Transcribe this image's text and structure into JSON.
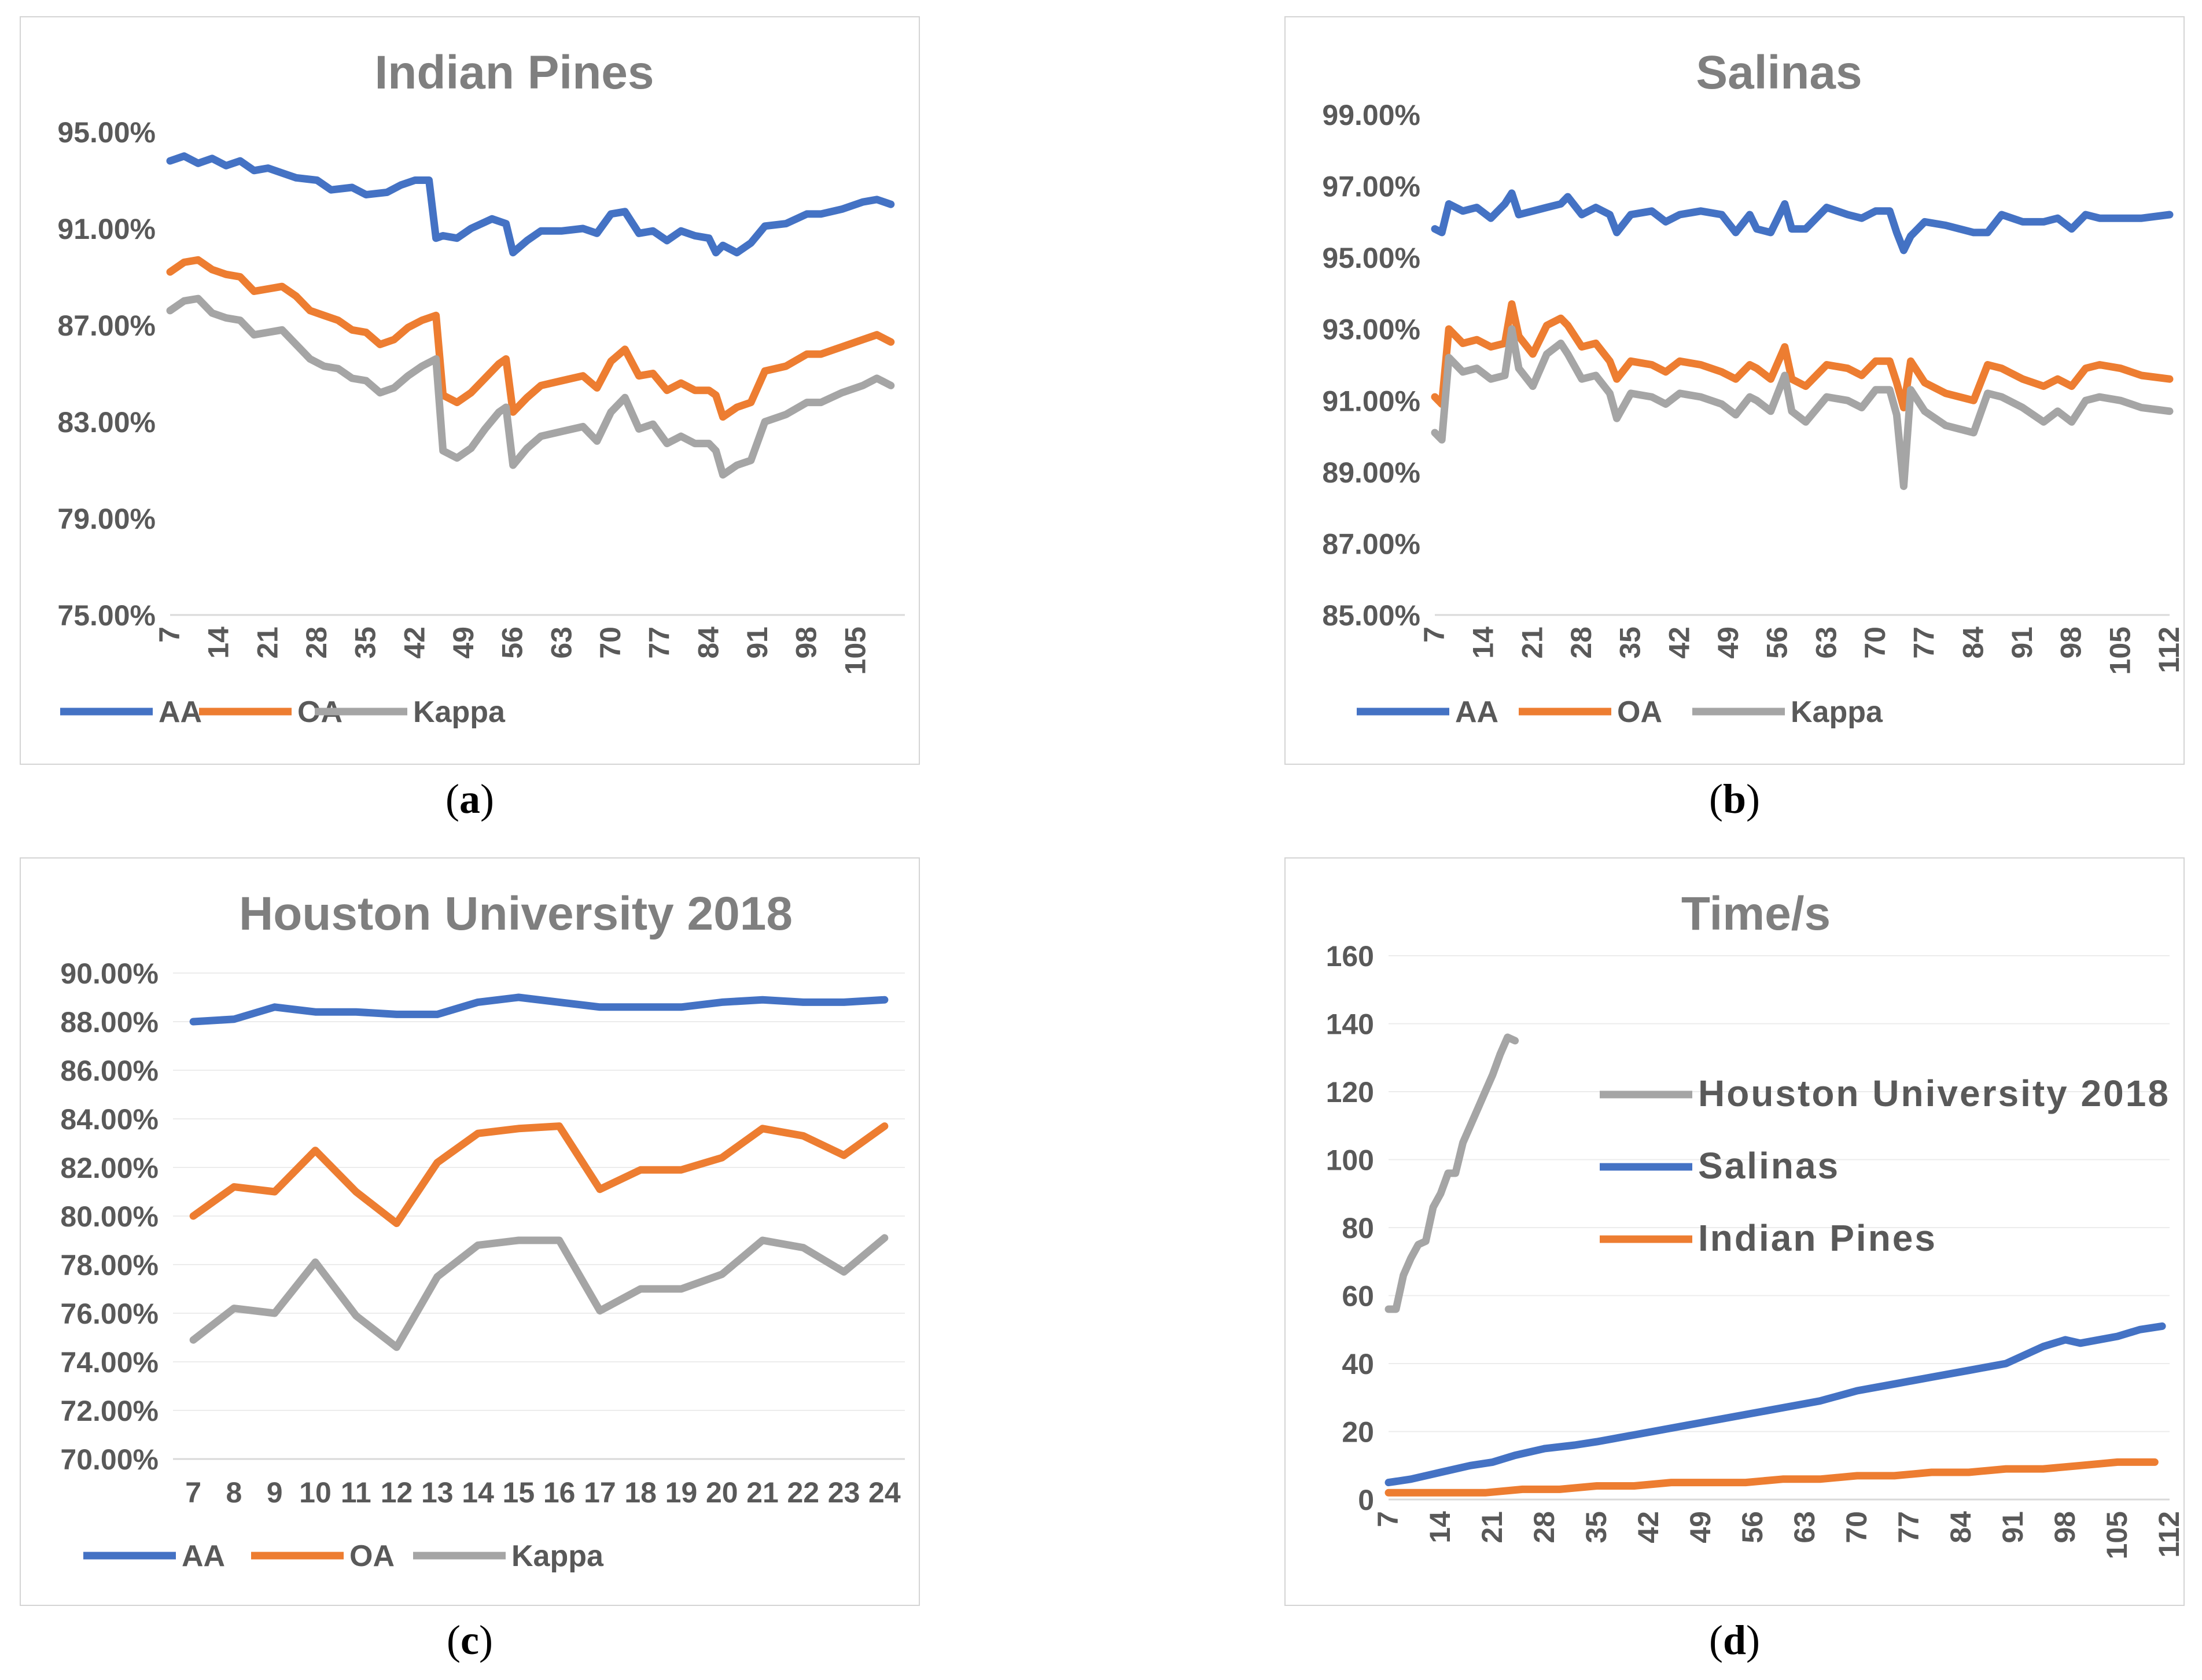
{
  "captions": {
    "a": "a",
    "b": "b",
    "c": "c",
    "d": "d"
  },
  "colors": {
    "AA": "#4472c4",
    "OA": "#ed7d31",
    "Kappa": "#a5a5a5",
    "text": "#595959",
    "title": "#7f7f7f",
    "grid": "#d9d9d9"
  },
  "chart_data": [
    {
      "id": "a",
      "type": "line",
      "title": "Indian Pines",
      "ylim": [
        0.75,
        0.95
      ],
      "yticks": [
        "75.00%",
        "79.00%",
        "83.00%",
        "87.00%",
        "91.00%",
        "95.00%"
      ],
      "xlim": [
        7,
        112
      ],
      "xticks": [
        "7",
        "14",
        "21",
        "28",
        "35",
        "42",
        "49",
        "56",
        "63",
        "70",
        "77",
        "84",
        "91",
        "98",
        "105"
      ],
      "legend": [
        "AA",
        "OA",
        "Kappa"
      ],
      "legend_position": "bottom",
      "series": [
        {
          "name": "AA",
          "color": "#4472c4",
          "x": [
            7,
            9,
            11,
            13,
            15,
            17,
            19,
            21,
            23,
            25,
            28,
            30,
            33,
            35,
            38,
            40,
            42,
            44,
            45,
            46,
            48,
            50,
            53,
            55,
            56,
            58,
            60,
            63,
            66,
            68,
            70,
            72,
            74,
            76,
            78,
            80,
            82,
            84,
            85,
            86,
            88,
            90,
            92,
            95,
            98,
            100,
            103,
            106,
            108,
            110
          ],
          "y": [
            0.938,
            0.94,
            0.937,
            0.939,
            0.936,
            0.938,
            0.934,
            0.935,
            0.933,
            0.931,
            0.93,
            0.926,
            0.927,
            0.924,
            0.925,
            0.928,
            0.93,
            0.93,
            0.906,
            0.907,
            0.906,
            0.91,
            0.914,
            0.912,
            0.9,
            0.905,
            0.909,
            0.909,
            0.91,
            0.908,
            0.916,
            0.917,
            0.908,
            0.909,
            0.905,
            0.909,
            0.907,
            0.906,
            0.9,
            0.903,
            0.9,
            0.904,
            0.911,
            0.912,
            0.916,
            0.916,
            0.918,
            0.921,
            0.922,
            0.92
          ]
        },
        {
          "name": "OA",
          "color": "#ed7d31",
          "x": [
            7,
            9,
            11,
            13,
            15,
            17,
            19,
            21,
            23,
            25,
            27,
            29,
            31,
            33,
            35,
            37,
            39,
            41,
            43,
            45,
            46,
            48,
            50,
            52,
            54,
            55,
            56,
            58,
            60,
            63,
            66,
            68,
            70,
            72,
            74,
            76,
            78,
            80,
            82,
            84,
            85,
            86,
            88,
            90,
            92,
            95,
            98,
            100,
            103,
            106,
            108,
            110
          ],
          "y": [
            0.892,
            0.896,
            0.897,
            0.893,
            0.891,
            0.89,
            0.884,
            0.885,
            0.886,
            0.882,
            0.876,
            0.874,
            0.872,
            0.868,
            0.867,
            0.862,
            0.864,
            0.869,
            0.872,
            0.874,
            0.841,
            0.838,
            0.842,
            0.848,
            0.854,
            0.856,
            0.834,
            0.84,
            0.845,
            0.847,
            0.849,
            0.844,
            0.855,
            0.86,
            0.849,
            0.85,
            0.843,
            0.846,
            0.843,
            0.843,
            0.841,
            0.832,
            0.836,
            0.838,
            0.851,
            0.853,
            0.858,
            0.858,
            0.861,
            0.864,
            0.866,
            0.863
          ]
        },
        {
          "name": "Kappa",
          "color": "#a5a5a5",
          "x": [
            7,
            9,
            11,
            13,
            15,
            17,
            19,
            21,
            23,
            25,
            27,
            29,
            31,
            33,
            35,
            37,
            39,
            41,
            43,
            45,
            46,
            48,
            50,
            52,
            54,
            55,
            56,
            58,
            60,
            63,
            66,
            68,
            70,
            72,
            74,
            76,
            78,
            80,
            82,
            84,
            85,
            86,
            88,
            90,
            92,
            95,
            98,
            100,
            103,
            106,
            108,
            110
          ],
          "y": [
            0.876,
            0.88,
            0.881,
            0.875,
            0.873,
            0.872,
            0.866,
            0.867,
            0.868,
            0.862,
            0.856,
            0.853,
            0.852,
            0.848,
            0.847,
            0.842,
            0.844,
            0.849,
            0.853,
            0.856,
            0.818,
            0.815,
            0.819,
            0.827,
            0.834,
            0.836,
            0.812,
            0.819,
            0.824,
            0.826,
            0.828,
            0.822,
            0.834,
            0.84,
            0.827,
            0.829,
            0.821,
            0.824,
            0.821,
            0.821,
            0.818,
            0.808,
            0.812,
            0.814,
            0.83,
            0.833,
            0.838,
            0.838,
            0.842,
            0.845,
            0.848,
            0.845
          ]
        }
      ]
    },
    {
      "id": "b",
      "type": "line",
      "title": "Salinas",
      "ylim": [
        0.85,
        0.99
      ],
      "yticks": [
        "85.00%",
        "87.00%",
        "89.00%",
        "91.00%",
        "93.00%",
        "95.00%",
        "97.00%",
        "99.00%"
      ],
      "xlim": [
        7,
        112
      ],
      "xticks": [
        "7",
        "14",
        "21",
        "28",
        "35",
        "42",
        "49",
        "56",
        "63",
        "70",
        "77",
        "84",
        "91",
        "98",
        "105",
        "112"
      ],
      "legend": [
        "AA",
        "OA",
        "Kappa"
      ],
      "legend_position": "bottom",
      "series": [
        {
          "name": "AA",
          "color": "#4472c4",
          "x": [
            7,
            8,
            9,
            11,
            13,
            15,
            17,
            18,
            19,
            21,
            23,
            25,
            26,
            28,
            30,
            32,
            33,
            35,
            38,
            40,
            42,
            45,
            48,
            50,
            52,
            53,
            55,
            57,
            58,
            60,
            63,
            66,
            68,
            70,
            72,
            73,
            74,
            75,
            77,
            80,
            84,
            86,
            88,
            91,
            94,
            96,
            98,
            100,
            102,
            105,
            108,
            112
          ],
          "y": [
            0.958,
            0.957,
            0.965,
            0.963,
            0.964,
            0.961,
            0.965,
            0.968,
            0.962,
            0.963,
            0.964,
            0.965,
            0.967,
            0.962,
            0.964,
            0.962,
            0.957,
            0.962,
            0.963,
            0.96,
            0.962,
            0.963,
            0.962,
            0.957,
            0.962,
            0.958,
            0.957,
            0.965,
            0.958,
            0.958,
            0.964,
            0.962,
            0.961,
            0.963,
            0.963,
            0.957,
            0.952,
            0.956,
            0.96,
            0.959,
            0.957,
            0.957,
            0.962,
            0.96,
            0.96,
            0.961,
            0.958,
            0.962,
            0.961,
            0.961,
            0.961,
            0.962
          ]
        },
        {
          "name": "OA",
          "color": "#ed7d31",
          "x": [
            7,
            8,
            9,
            11,
            13,
            15,
            17,
            18,
            19,
            21,
            23,
            25,
            26,
            28,
            30,
            32,
            33,
            35,
            38,
            40,
            42,
            45,
            48,
            50,
            52,
            53,
            55,
            57,
            58,
            60,
            63,
            66,
            68,
            70,
            72,
            73,
            74,
            75,
            77,
            80,
            84,
            86,
            88,
            91,
            94,
            96,
            98,
            100,
            102,
            105,
            108,
            112
          ],
          "y": [
            0.911,
            0.909,
            0.93,
            0.926,
            0.927,
            0.925,
            0.926,
            0.937,
            0.928,
            0.923,
            0.931,
            0.933,
            0.931,
            0.925,
            0.926,
            0.921,
            0.916,
            0.921,
            0.92,
            0.918,
            0.921,
            0.92,
            0.918,
            0.916,
            0.92,
            0.919,
            0.916,
            0.925,
            0.916,
            0.914,
            0.92,
            0.919,
            0.917,
            0.921,
            0.921,
            0.915,
            0.908,
            0.921,
            0.915,
            0.912,
            0.91,
            0.92,
            0.919,
            0.916,
            0.914,
            0.916,
            0.914,
            0.919,
            0.92,
            0.919,
            0.917,
            0.916
          ]
        },
        {
          "name": "Kappa",
          "color": "#a5a5a5",
          "x": [
            7,
            8,
            9,
            11,
            13,
            15,
            17,
            18,
            19,
            21,
            23,
            25,
            26,
            28,
            30,
            32,
            33,
            35,
            38,
            40,
            42,
            45,
            48,
            50,
            52,
            53,
            55,
            57,
            58,
            60,
            63,
            66,
            68,
            70,
            72,
            73,
            74,
            75,
            77,
            80,
            84,
            86,
            88,
            91,
            94,
            96,
            98,
            100,
            102,
            105,
            108,
            112
          ],
          "y": [
            0.901,
            0.899,
            0.922,
            0.918,
            0.919,
            0.916,
            0.917,
            0.93,
            0.919,
            0.914,
            0.923,
            0.926,
            0.923,
            0.916,
            0.917,
            0.912,
            0.905,
            0.912,
            0.911,
            0.909,
            0.912,
            0.911,
            0.909,
            0.906,
            0.911,
            0.91,
            0.907,
            0.917,
            0.907,
            0.904,
            0.911,
            0.91,
            0.908,
            0.913,
            0.913,
            0.906,
            0.886,
            0.913,
            0.907,
            0.903,
            0.901,
            0.912,
            0.911,
            0.908,
            0.904,
            0.907,
            0.904,
            0.91,
            0.911,
            0.91,
            0.908,
            0.907
          ]
        }
      ]
    },
    {
      "id": "c",
      "type": "line",
      "title": "Houston University 2018",
      "ylim": [
        0.7,
        0.9
      ],
      "yticks": [
        "70.00%",
        "72.00%",
        "74.00%",
        "76.00%",
        "78.00%",
        "80.00%",
        "82.00%",
        "84.00%",
        "86.00%",
        "88.00%",
        "90.00%"
      ],
      "categories": [
        "7",
        "8",
        "9",
        "10",
        "11",
        "12",
        "13",
        "14",
        "15",
        "16",
        "17",
        "18",
        "19",
        "20",
        "21",
        "22",
        "23",
        "24"
      ],
      "legend": [
        "AA",
        "OA",
        "Kappa"
      ],
      "legend_position": "bottom",
      "series": [
        {
          "name": "AA",
          "color": "#4472c4",
          "values": [
            0.88,
            0.881,
            0.886,
            0.884,
            0.884,
            0.883,
            0.883,
            0.888,
            0.89,
            0.888,
            0.886,
            0.886,
            0.886,
            0.888,
            0.889,
            0.888,
            0.888,
            0.889
          ]
        },
        {
          "name": "OA",
          "color": "#ed7d31",
          "values": [
            0.8,
            0.812,
            0.81,
            0.827,
            0.81,
            0.797,
            0.822,
            0.834,
            0.836,
            0.837,
            0.811,
            0.819,
            0.819,
            0.824,
            0.836,
            0.833,
            0.825,
            0.837
          ]
        },
        {
          "name": "Kappa",
          "color": "#a5a5a5",
          "values": [
            0.749,
            0.762,
            0.76,
            0.781,
            0.759,
            0.746,
            0.775,
            0.788,
            0.79,
            0.79,
            0.761,
            0.77,
            0.77,
            0.776,
            0.79,
            0.787,
            0.777,
            0.791
          ]
        }
      ]
    },
    {
      "id": "d",
      "type": "line",
      "title": "Time/s",
      "ylim": [
        0,
        160
      ],
      "yticks": [
        "0",
        "20",
        "40",
        "60",
        "80",
        "100",
        "120",
        "140",
        "160"
      ],
      "xlim": [
        7,
        112
      ],
      "xticks": [
        "7",
        "14",
        "21",
        "28",
        "35",
        "42",
        "49",
        "56",
        "63",
        "70",
        "77",
        "84",
        "91",
        "98",
        "105",
        "112"
      ],
      "legend": [
        "Houston University 2018",
        "Salinas",
        "Indian Pines"
      ],
      "legend_position": "top-right",
      "series": [
        {
          "name": "Houston University 2018",
          "color": "#a5a5a5",
          "x": [
            7,
            8,
            9,
            10,
            11,
            12,
            13,
            14,
            15,
            16,
            17,
            18,
            19,
            20,
            21,
            22,
            23,
            24
          ],
          "y": [
            56,
            56,
            66,
            71,
            75,
            76,
            86,
            90,
            96,
            96,
            105,
            110,
            115,
            120,
            125,
            131,
            136,
            135
          ]
        },
        {
          "name": "Salinas",
          "color": "#4472c4",
          "x": [
            7,
            10,
            14,
            18,
            21,
            24,
            28,
            32,
            35,
            40,
            45,
            50,
            55,
            60,
            65,
            70,
            75,
            80,
            85,
            90,
            95,
            98,
            100,
            105,
            108,
            111
          ],
          "y": [
            5,
            6,
            8,
            10,
            11,
            13,
            15,
            16,
            17,
            19,
            21,
            23,
            25,
            27,
            29,
            32,
            34,
            36,
            38,
            40,
            45,
            47,
            46,
            48,
            50,
            51
          ]
        },
        {
          "name": "Indian Pines",
          "color": "#ed7d31",
          "x": [
            7,
            15,
            20,
            25,
            30,
            35,
            40,
            45,
            50,
            55,
            60,
            65,
            70,
            75,
            80,
            85,
            90,
            95,
            100,
            105,
            110
          ],
          "y": [
            2,
            2,
            2,
            3,
            3,
            4,
            4,
            5,
            5,
            5,
            6,
            6,
            7,
            7,
            8,
            8,
            9,
            9,
            10,
            11,
            11
          ]
        }
      ]
    }
  ]
}
